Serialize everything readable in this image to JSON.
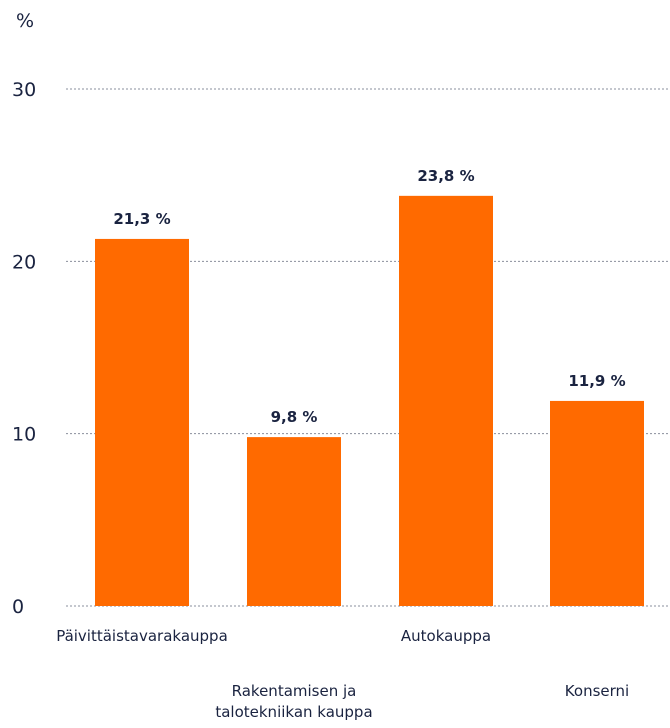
{
  "chart_data": {
    "type": "bar",
    "unit_label": "%",
    "categories": [
      [
        "Päivittäistavarakauppa"
      ],
      [
        "Rakentamisen ja",
        "talotekniikan kauppa"
      ],
      [
        "Autokauppa"
      ],
      [
        "Konserni"
      ]
    ],
    "values": [
      21.3,
      9.8,
      23.8,
      11.9
    ],
    "value_labels": [
      "21,3 %",
      "9,8 %",
      "23,8 %",
      "11,9 %"
    ],
    "yticks": [
      "0",
      "10",
      "20",
      "30"
    ],
    "ylim": [
      0,
      30
    ],
    "grid": true,
    "bar_color": "#ff6a00",
    "text_color": "#1a2340",
    "grid_color": "#8a8f9c"
  }
}
